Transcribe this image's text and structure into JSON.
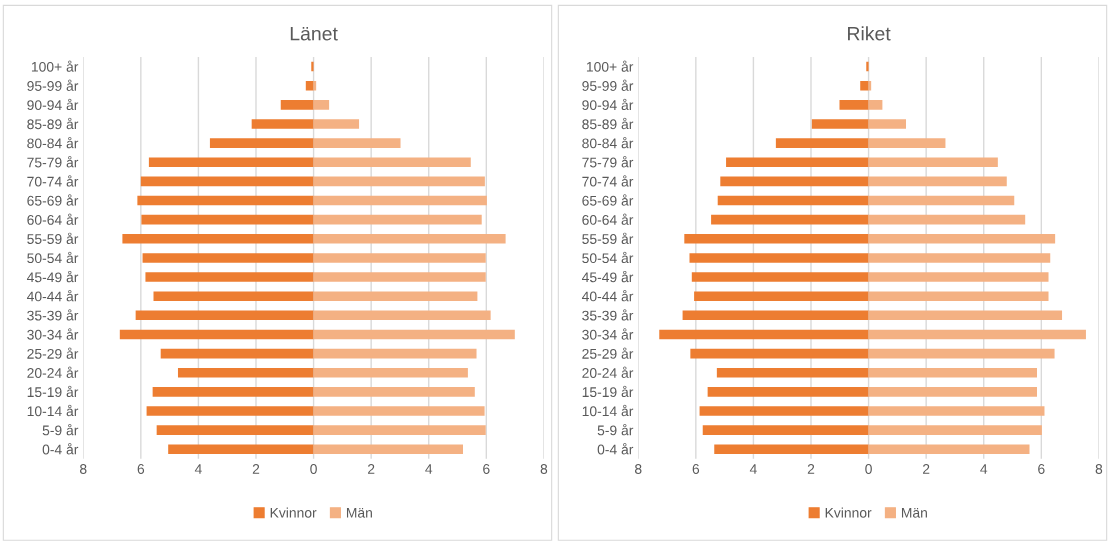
{
  "chart_data": [
    {
      "type": "bar",
      "orientation": "horizontal",
      "stacked": true,
      "title": "Länet",
      "categories": [
        "100+ år",
        "95-99 år",
        "90-94 år",
        "85-89 år",
        "80-84 år",
        "75-79 år",
        "70-74 år",
        "65-69 år",
        "60-64 år",
        "55-59 år",
        "50-54 år",
        "45-49 år",
        "40-44 år",
        "35-39 år",
        "30-34 år",
        "25-29 år",
        "20-24 år",
        "15-19 år",
        "10-14 år",
        "5-9 år",
        "0-4 år"
      ],
      "series": [
        {
          "name": "Kvinnor",
          "color": "#ed7d31",
          "values": [
            -0.08,
            -0.27,
            -1.14,
            -2.15,
            -3.6,
            -5.72,
            -6.0,
            -6.12,
            -5.98,
            -6.64,
            -5.94,
            -5.84,
            -5.56,
            -6.18,
            -6.73,
            -5.31,
            -4.71,
            -5.59,
            -5.8,
            -5.45,
            -5.05
          ]
        },
        {
          "name": "Män",
          "color": "#f4b183",
          "values": [
            null,
            0.09,
            0.54,
            1.58,
            3.02,
            5.46,
            5.95,
            6.02,
            5.84,
            6.67,
            5.98,
            5.98,
            5.69,
            6.15,
            6.99,
            5.66,
            5.36,
            5.6,
            5.94,
            5.98,
            5.19
          ]
        }
      ],
      "xlim": [
        -8,
        8
      ],
      "xticks": [
        {
          "value": -8,
          "label": "8"
        },
        {
          "value": -6,
          "label": "6"
        },
        {
          "value": -4,
          "label": "4"
        },
        {
          "value": -2,
          "label": "2"
        },
        0,
        2,
        4,
        6,
        8
      ],
      "grid": "x",
      "legend": "bottom"
    },
    {
      "type": "bar",
      "orientation": "horizontal",
      "stacked": true,
      "title": "Riket",
      "categories": [
        "100+ år",
        "95-99 år",
        "90-94 år",
        "85-89 år",
        "80-84 år",
        "75-79 år",
        "70-74 år",
        "65-69 år",
        "60-64 år",
        "55-59 år",
        "50-54 år",
        "45-49 år",
        "40-44 år",
        "35-39 år",
        "30-34 år",
        "25-29 år",
        "20-24 år",
        "15-19 år",
        "10-14 år",
        "5-9 år",
        "0-4 år"
      ],
      "series": [
        {
          "name": "Kvinnor",
          "color": "#ed7d31",
          "values": [
            -0.08,
            -0.29,
            -1.01,
            -1.97,
            -3.22,
            -4.95,
            -5.15,
            -5.24,
            -5.47,
            -6.4,
            -6.22,
            -6.14,
            -6.06,
            -6.46,
            -7.27,
            -6.19,
            -5.27,
            -5.59,
            -5.87,
            -5.76,
            -5.36
          ]
        },
        {
          "name": "Män",
          "color": "#f4b183",
          "values": [
            null,
            0.09,
            0.48,
            1.3,
            2.67,
            4.49,
            4.8,
            5.06,
            5.44,
            6.48,
            6.31,
            6.25,
            6.25,
            6.72,
            7.55,
            6.46,
            5.85,
            5.85,
            6.11,
            6.02,
            5.59
          ]
        }
      ],
      "xlim": [
        -8,
        8
      ],
      "xticks": [
        {
          "value": -8,
          "label": "8"
        },
        {
          "value": -6,
          "label": "6"
        },
        {
          "value": -4,
          "label": "4"
        },
        {
          "value": -2,
          "label": "2"
        },
        0,
        2,
        4,
        6,
        8
      ],
      "grid": "x",
      "legend": "bottom"
    }
  ]
}
